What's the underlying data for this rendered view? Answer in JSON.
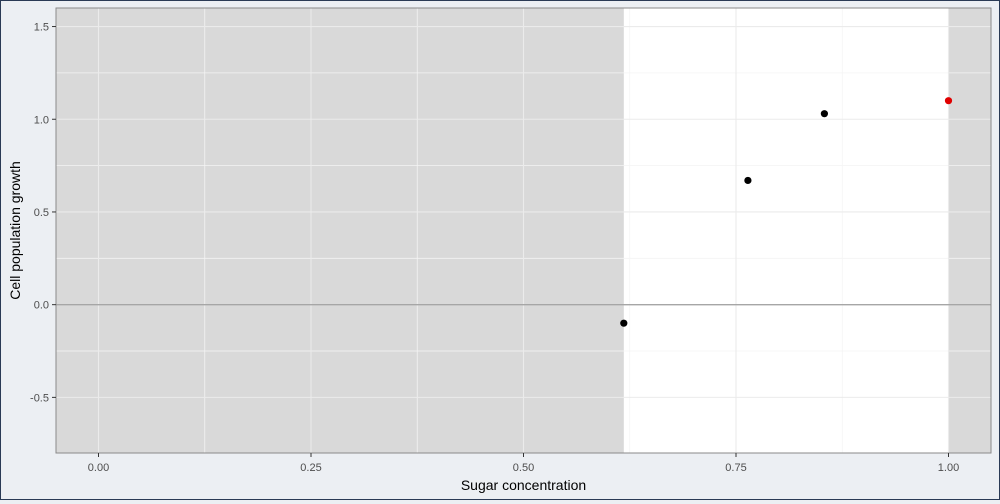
{
  "chart_data": {
    "type": "scatter",
    "xlabel": "Sugar concentration",
    "ylabel": "Cell population growth",
    "xlim": [
      -0.05,
      1.05
    ],
    "ylim": [
      -0.8,
      1.6
    ],
    "x_ticks": [
      "0.00",
      "0.25",
      "0.50",
      "0.75",
      "1.00"
    ],
    "x_tick_values": [
      0,
      0.25,
      0.5,
      0.75,
      1.0
    ],
    "y_ticks": [
      "-0.5",
      "0.0",
      "0.5",
      "1.0",
      "1.5"
    ],
    "y_tick_values": [
      -0.5,
      0,
      0.5,
      1.0,
      1.5
    ],
    "grid": true,
    "reference_line_y": 0,
    "shaded_x_ranges": [
      [
        -0.05,
        0.618
      ],
      [
        1.0,
        1.05
      ]
    ],
    "points": [
      {
        "x": 0.618,
        "y": -0.1,
        "color": "#000000"
      },
      {
        "x": 0.764,
        "y": 0.67,
        "color": "#000000"
      },
      {
        "x": 0.854,
        "y": 1.03,
        "color": "#000000"
      },
      {
        "x": 1.0,
        "y": 1.1,
        "color": "#e00000"
      }
    ]
  },
  "colors": {
    "shade": "#d9d9d9",
    "panel": "#ffffff",
    "grid_major": "#ebebeb",
    "grid_minor": "#f4f4f4",
    "zero_line": "#a6a6a6",
    "axis_text": "#4d4d4d"
  }
}
